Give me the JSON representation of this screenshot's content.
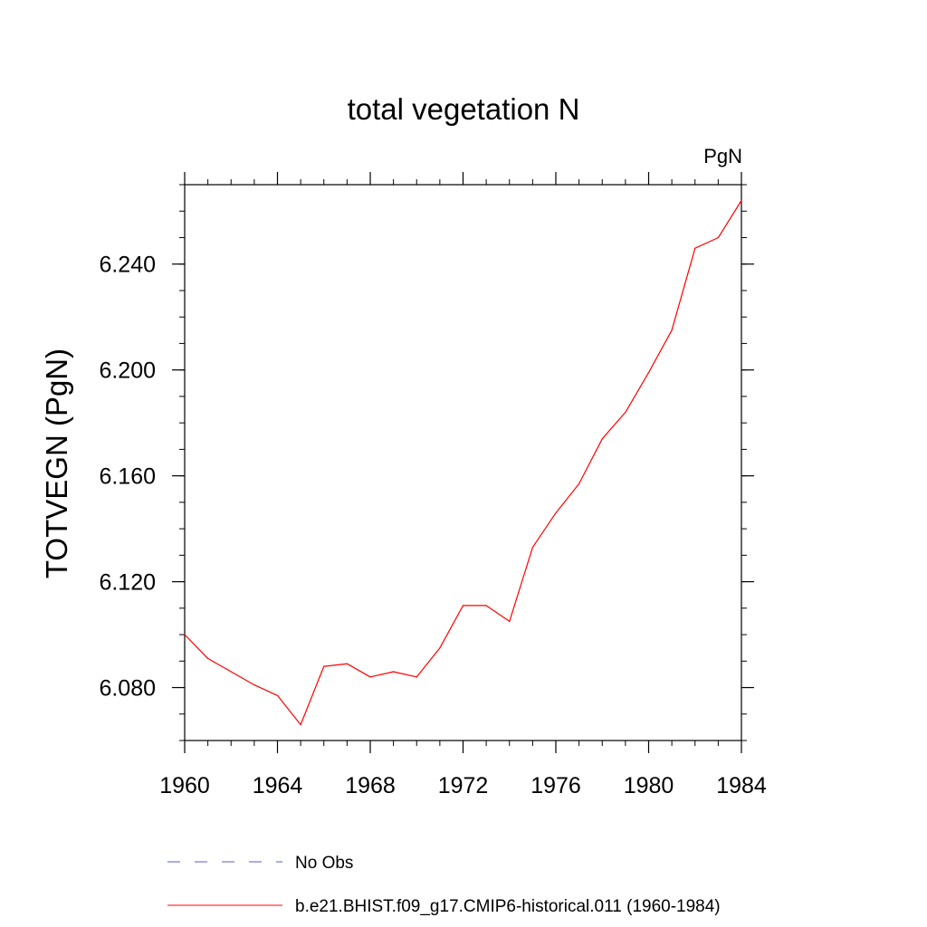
{
  "chart_data": {
    "type": "line",
    "title": "total vegetation N",
    "units": "PgN",
    "ylabel": "TOTVEGN  (PgN)",
    "xlabel": "",
    "xlim": [
      1960,
      1984
    ],
    "ylim": [
      6.06,
      6.27
    ],
    "x_ticks": [
      1960,
      1964,
      1968,
      1972,
      1976,
      1980,
      1984
    ],
    "x_tick_labels": [
      "1960",
      "1964",
      "1968",
      "1972",
      "1976",
      "1980",
      "1984"
    ],
    "y_ticks": [
      6.08,
      6.12,
      6.16,
      6.2,
      6.24
    ],
    "y_tick_labels": [
      "6.080",
      "6.120",
      "6.160",
      "6.200",
      "6.240"
    ],
    "grid": false,
    "legend_placement": "bottom",
    "series": [
      {
        "name": "b.e21.BHIST.f09_g17.CMIP6-historical.011 (1960-1984)",
        "color": "#ff0000",
        "style": "solid",
        "x": [
          1960,
          1961,
          1962,
          1963,
          1964,
          1965,
          1966,
          1967,
          1968,
          1969,
          1970,
          1971,
          1972,
          1973,
          1974,
          1975,
          1976,
          1977,
          1978,
          1979,
          1980,
          1981,
          1982,
          1983,
          1984
        ],
        "y": [
          6.1,
          6.091,
          6.086,
          6.081,
          6.077,
          6.066,
          6.088,
          6.089,
          6.084,
          6.086,
          6.084,
          6.095,
          6.111,
          6.111,
          6.105,
          6.133,
          6.146,
          6.157,
          6.174,
          6.184,
          6.199,
          6.215,
          6.246,
          6.25,
          6.264
        ]
      }
    ],
    "legend": [
      {
        "label": "No Obs",
        "color": "#5a5ad0",
        "style": "dashed"
      },
      {
        "label": "b.e21.BHIST.f09_g17.CMIP6-historical.011 (1960-1984)",
        "color": "#ff0000",
        "style": "solid"
      }
    ]
  }
}
